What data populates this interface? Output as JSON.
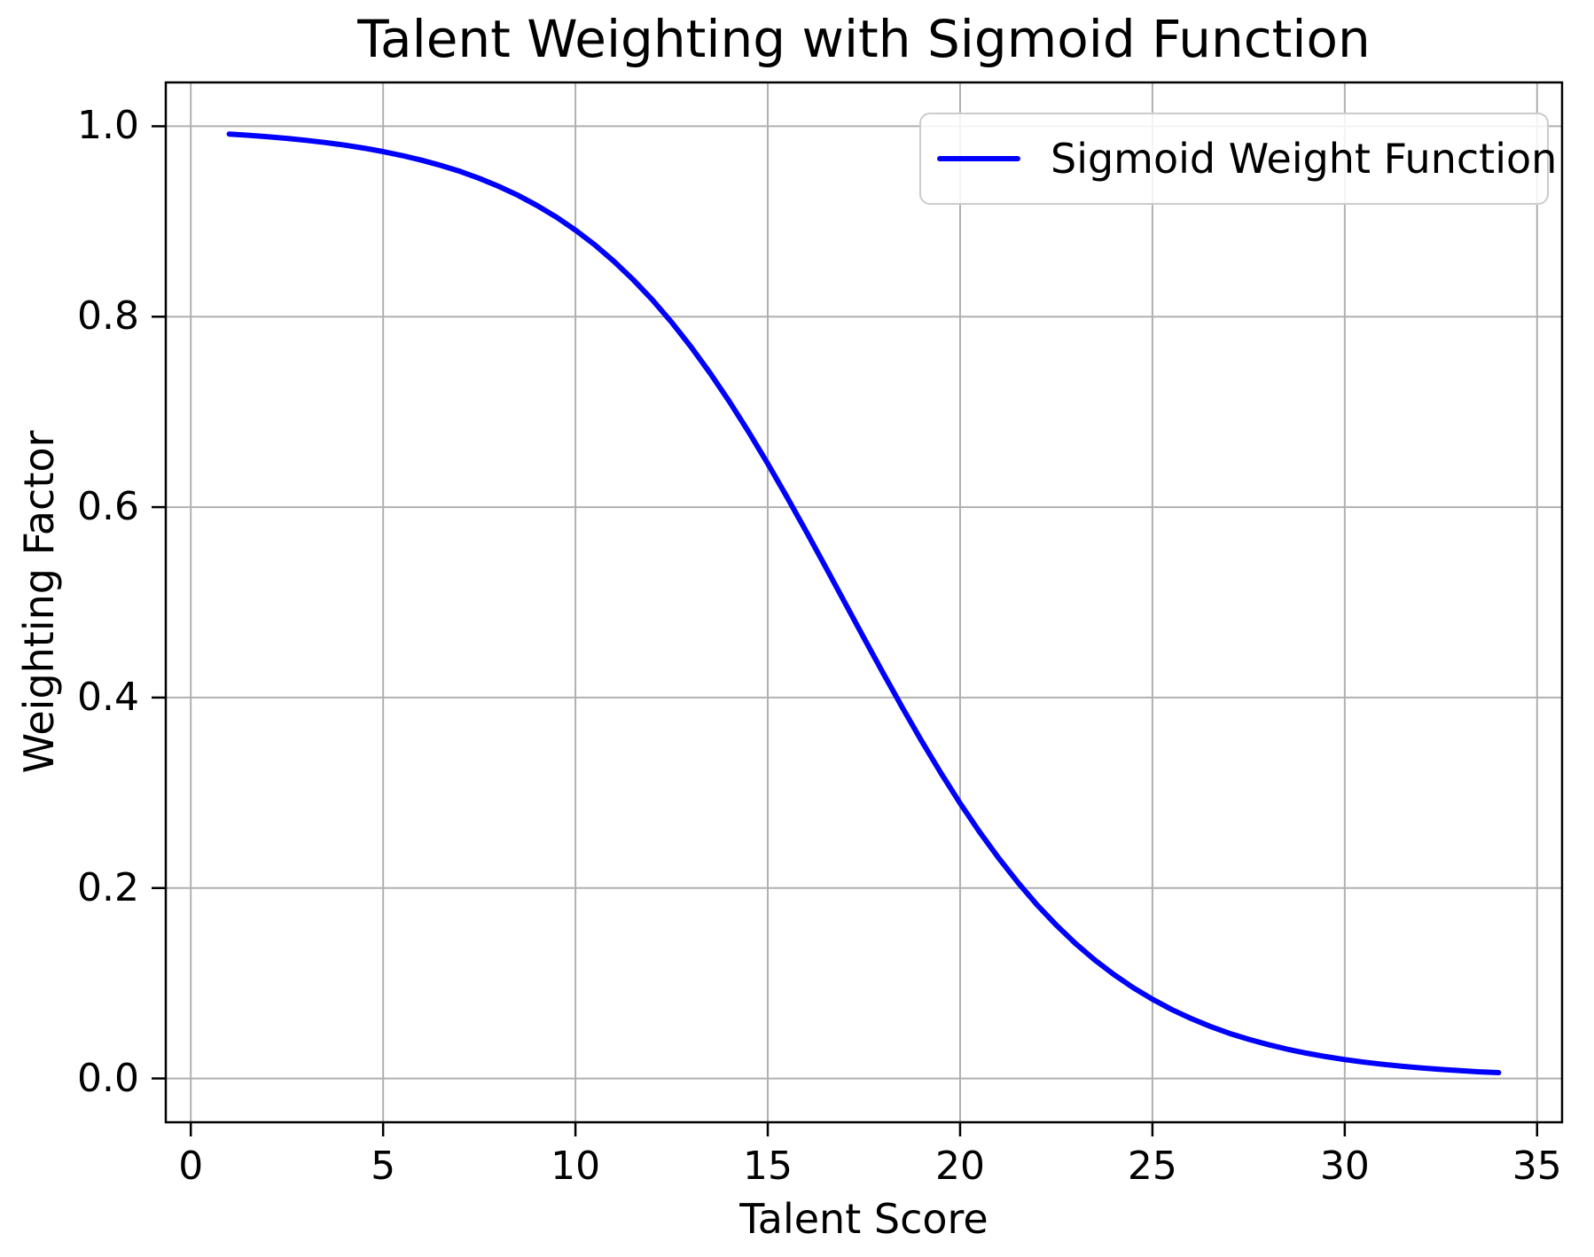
{
  "figure": {
    "background": "#ffffff"
  },
  "chart_data": {
    "type": "line",
    "title": "Talent Weighting with Sigmoid Function",
    "xlabel": "Talent Score",
    "ylabel": "Weighting Factor",
    "grid": true,
    "legend": {
      "position": "upper right",
      "entries": [
        {
          "label": "Sigmoid Weight Function",
          "color": "#0000ff"
        }
      ]
    },
    "axes": {
      "xlim": [
        -0.65,
        35.65
      ],
      "ylim": [
        -0.046,
        1.046
      ],
      "x_ticks": [
        0,
        5,
        10,
        15,
        20,
        25,
        30,
        35
      ],
      "x_tick_labels": [
        "0",
        "5",
        "10",
        "15",
        "20",
        "25",
        "30",
        "35"
      ],
      "y_ticks": [
        0.0,
        0.2,
        0.4,
        0.6,
        0.8,
        1.0
      ],
      "y_tick_labels": [
        "0.0",
        "0.2",
        "0.4",
        "0.6",
        "0.8",
        "1.0"
      ]
    },
    "series": [
      {
        "name": "Sigmoid Weight Function",
        "color": "#0000ff",
        "formula": "w(x) = 1 / (1 + exp(0.3 * (x - 17)))",
        "x_start": 1,
        "x_end": 34,
        "x_step": 0.5,
        "y": [
          0.9918,
          0.9905,
          0.989,
          0.9873,
          0.9852,
          0.9829,
          0.9802,
          0.977,
          0.9734,
          0.9692,
          0.9644,
          0.9589,
          0.9526,
          0.9453,
          0.937,
          0.9276,
          0.9168,
          0.9047,
          0.8909,
          0.8755,
          0.8581,
          0.8389,
          0.8176,
          0.7941,
          0.7685,
          0.7408,
          0.711,
          0.6792,
          0.6457,
          0.6106,
          0.5744,
          0.5374,
          0.5,
          0.4626,
          0.4256,
          0.3894,
          0.3543,
          0.3208,
          0.289,
          0.2592,
          0.2315,
          0.2059,
          0.1824,
          0.1611,
          0.1418,
          0.1245,
          0.1091,
          0.0953,
          0.0832,
          0.0724,
          0.063,
          0.0547,
          0.0474,
          0.0411,
          0.0356,
          0.0308,
          0.0266,
          0.023,
          0.0198,
          0.0171,
          0.0148,
          0.0127,
          0.011,
          0.0095,
          0.0082,
          0.007,
          0.0061
        ]
      }
    ],
    "colors": {
      "line": "#0000ff",
      "grid": "#b0b0b0",
      "spine": "#000000",
      "text": "#000000",
      "legend_border": "#cccccc"
    }
  }
}
